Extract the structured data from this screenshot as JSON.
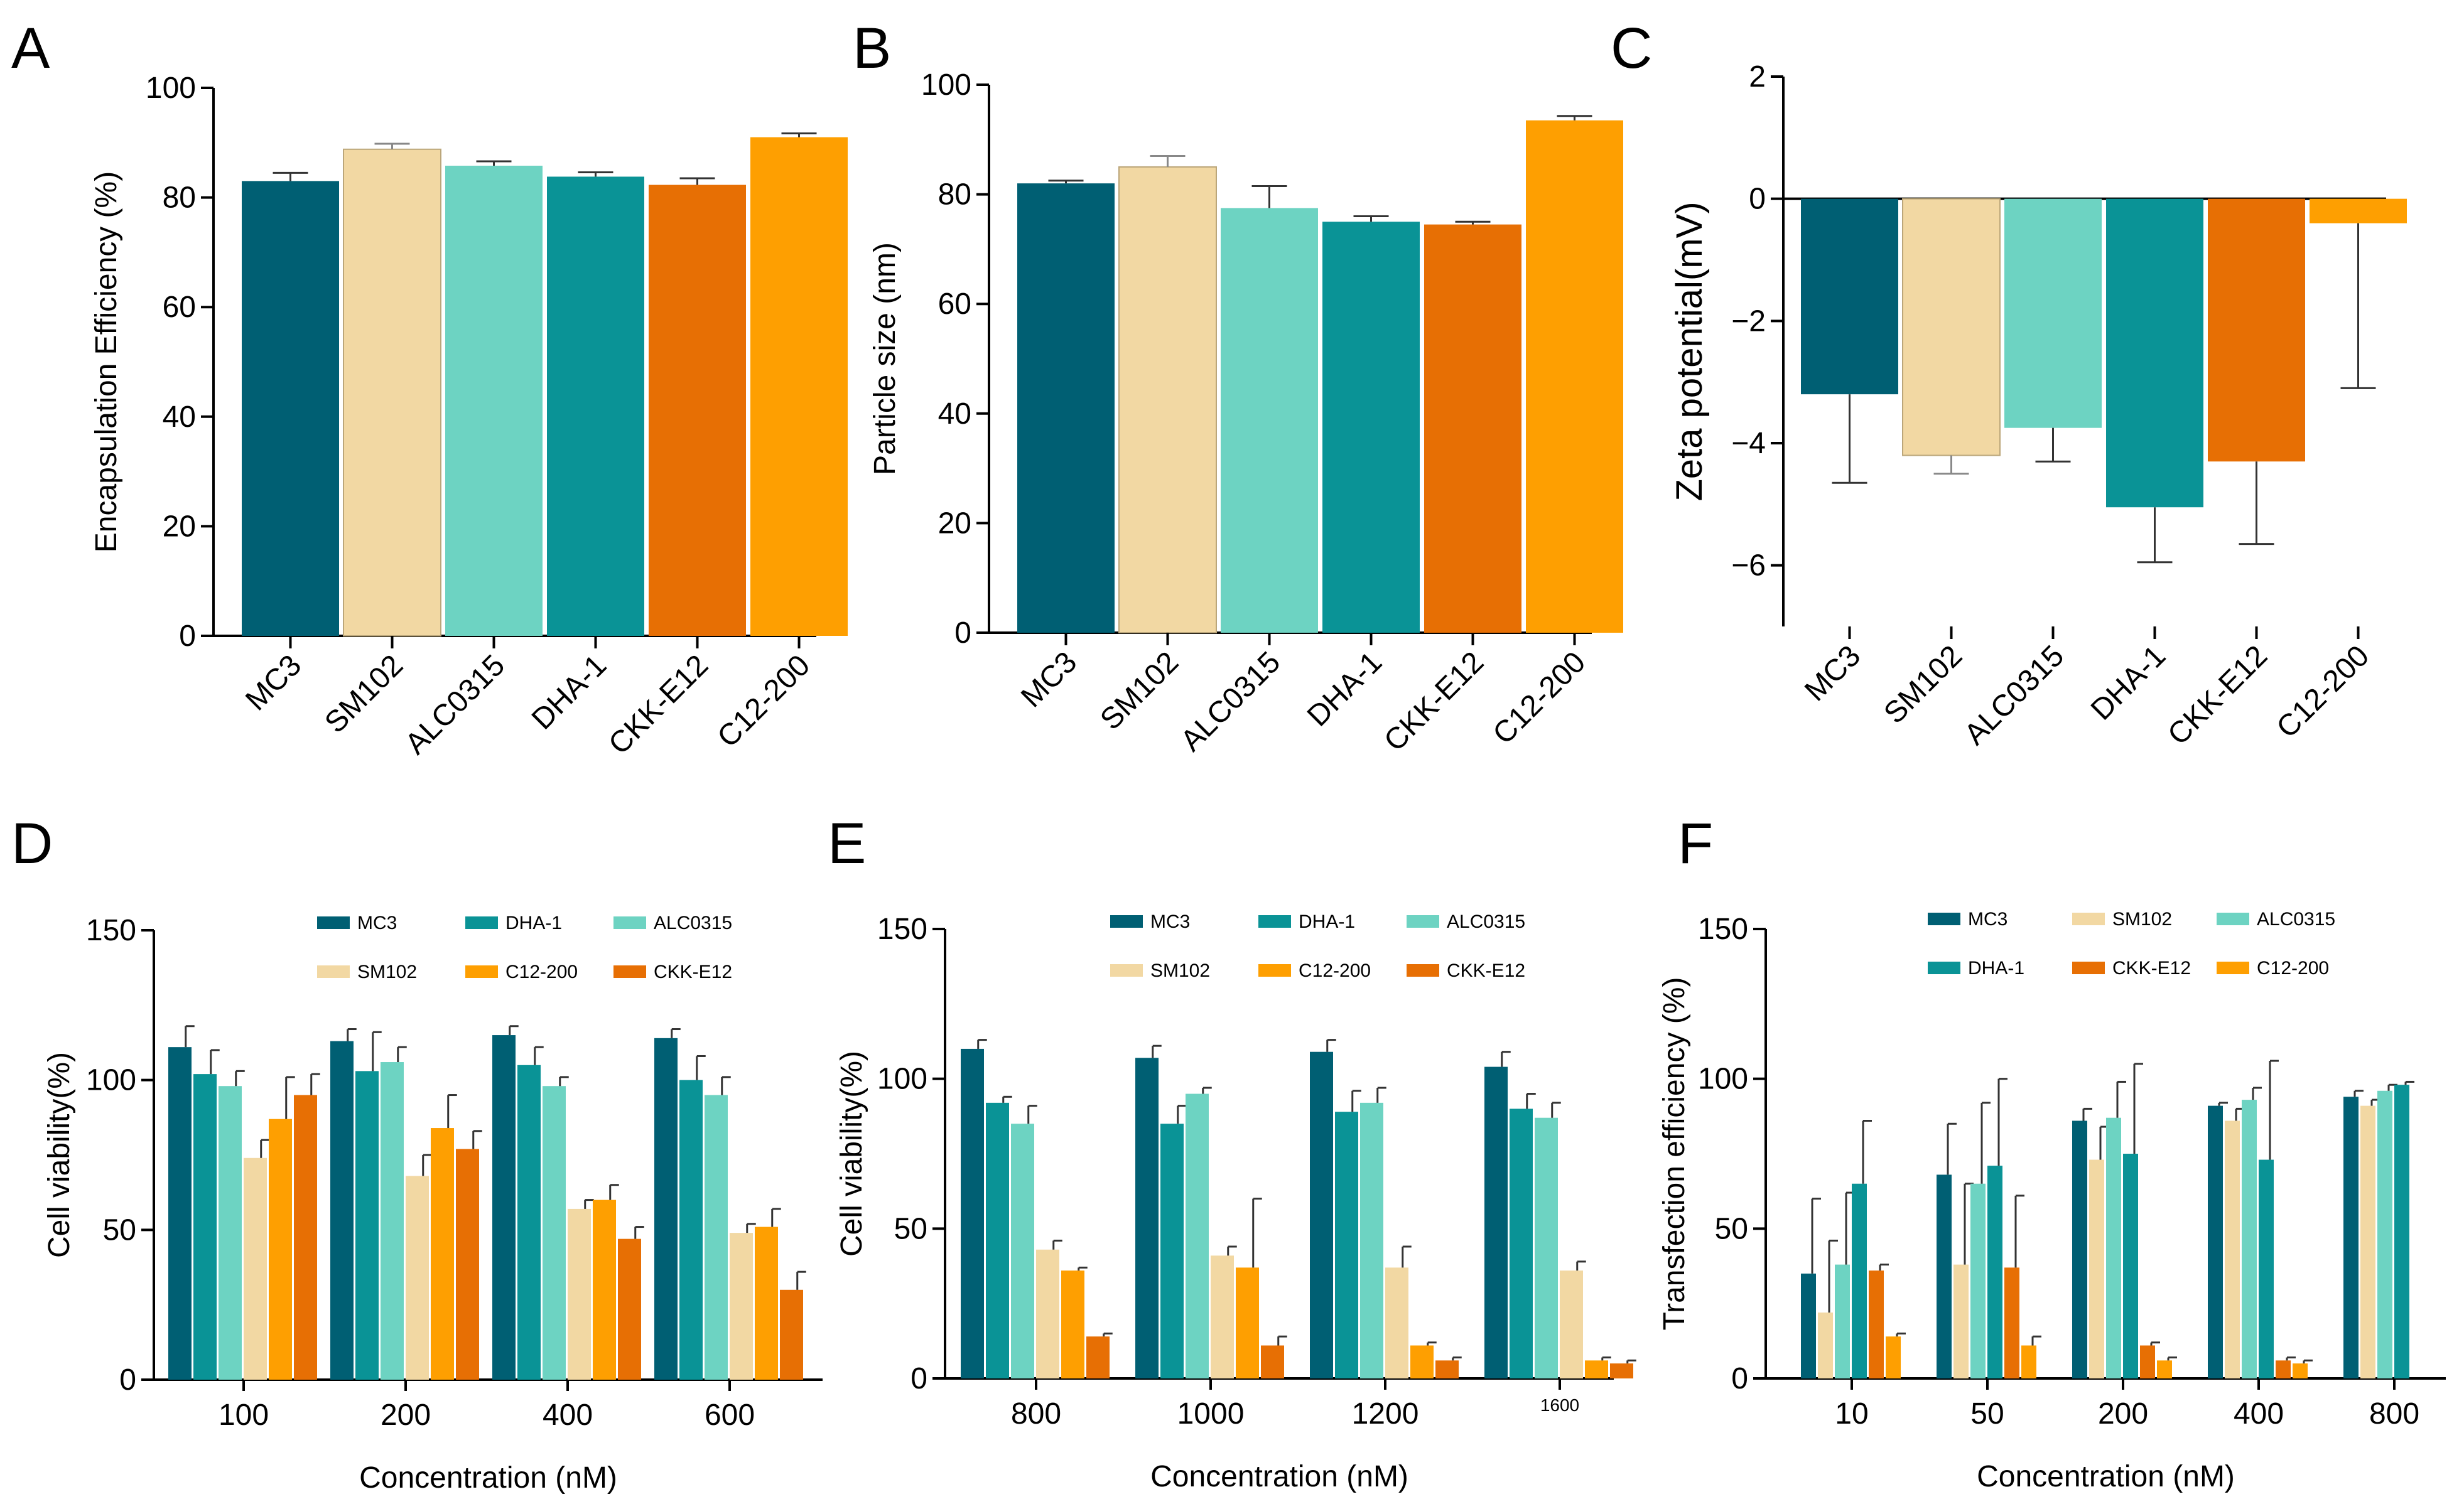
{
  "panel_labels": [
    "A",
    "B",
    "C",
    "D",
    "E",
    "F"
  ],
  "colors": {
    "MC3": "#005F73",
    "SM102": "#F2D8A3",
    "ALC0315": "#6DD3C2",
    "DHA-1": "#0A9396",
    "CKK-E12": "#E76F04",
    "C12-200": "#FE9F01"
  },
  "chart_data": [
    {
      "id": "A",
      "type": "bar",
      "categories": [
        "MC3",
        "SM102",
        "ALC0315",
        "DHA-1",
        "CKK-E12",
        "C12-200"
      ],
      "values": [
        83,
        88.8,
        85.8,
        83.8,
        82.3,
        91
      ],
      "errors": [
        1.5,
        1.0,
        0.8,
        0.8,
        1.2,
        0.7
      ],
      "xlabel": "",
      "ylabel": "Encapsulation Efficiency (%)",
      "ylim": [
        0,
        100
      ],
      "yticks": [
        0,
        20,
        40,
        60,
        80,
        100
      ],
      "ytick_labels": [
        "0",
        "20",
        "40",
        "60",
        "80",
        "100"
      ]
    },
    {
      "id": "B",
      "type": "bar",
      "categories": [
        "MC3",
        "SM102",
        "ALC0315",
        "DHA-1",
        "CKK-E12",
        "C12-200"
      ],
      "values": [
        82,
        85,
        77.5,
        75,
        74.5,
        93.5
      ],
      "errors": [
        0.5,
        2,
        4,
        1,
        0.5,
        0.8
      ],
      "xlabel": "",
      "ylabel": "Particle size (nm)",
      "ylim": [
        0,
        100
      ],
      "yticks": [
        0,
        20,
        40,
        60,
        80,
        100
      ],
      "ytick_labels": [
        "0",
        "20",
        "40",
        "60",
        "80",
        "100"
      ]
    },
    {
      "id": "C",
      "type": "bar",
      "categories": [
        "MC3",
        "SM102",
        "ALC0315",
        "DHA-1",
        "CKK-E12",
        "C12-200"
      ],
      "values": [
        -3.2,
        -4.2,
        -3.75,
        -5.05,
        -4.3,
        -0.4
      ],
      "errors": [
        1.45,
        0.3,
        0.55,
        0.9,
        1.35,
        2.7
      ],
      "xlabel": "",
      "ylabel": "Zeta potential(mV)",
      "ylim": [
        -7,
        2
      ],
      "yticks": [
        -6,
        -4,
        -2,
        0,
        2
      ],
      "ytick_labels": [
        "−6",
        "−4",
        "−2",
        "0",
        "2"
      ]
    },
    {
      "id": "D",
      "type": "bar",
      "categories": [
        "100",
        "200",
        "400",
        "600"
      ],
      "series": [
        {
          "name": "MC3",
          "values": [
            111,
            113,
            115,
            114
          ],
          "errors": [
            7,
            4,
            3,
            3
          ]
        },
        {
          "name": "DHA-1",
          "values": [
            102,
            103,
            105,
            100
          ],
          "errors": [
            8,
            13,
            6,
            8
          ]
        },
        {
          "name": "ALC0315",
          "values": [
            98,
            106,
            98,
            95
          ],
          "errors": [
            5,
            5,
            3,
            6
          ]
        },
        {
          "name": "SM102",
          "values": [
            74,
            68,
            57,
            49
          ],
          "errors": [
            6,
            7,
            3,
            3
          ]
        },
        {
          "name": "C12-200",
          "values": [
            87,
            84,
            60,
            51
          ],
          "errors": [
            14,
            11,
            5,
            6
          ]
        },
        {
          "name": "CKK-E12",
          "values": [
            95,
            77,
            47,
            30
          ],
          "errors": [
            7,
            6,
            4,
            6
          ]
        }
      ],
      "legend_order": [
        0,
        1,
        2,
        3,
        4,
        5
      ],
      "legend_labels": [
        "MC3",
        "DHA-1",
        "ALC0315",
        "SM102",
        "C12-200",
        "CKK-E12"
      ],
      "xlabel": "Concentration (nM)",
      "ylabel": "Cell viability(%)",
      "ylim": [
        0,
        150
      ],
      "yticks": [
        0,
        50,
        100,
        150
      ],
      "ytick_labels": [
        "0",
        "50",
        "100",
        "150"
      ]
    },
    {
      "id": "E",
      "type": "bar",
      "categories": [
        "800",
        "1000",
        "1200",
        "1600"
      ],
      "series": [
        {
          "name": "MC3",
          "values": [
            110,
            107,
            109,
            104
          ],
          "errors": [
            3,
            4,
            4,
            5
          ]
        },
        {
          "name": "DHA-1",
          "values": [
            92,
            85,
            89,
            90
          ],
          "errors": [
            2,
            6,
            7,
            5
          ]
        },
        {
          "name": "ALC0315",
          "values": [
            85,
            95,
            92,
            87
          ],
          "errors": [
            6,
            2,
            5,
            5
          ]
        },
        {
          "name": "SM102",
          "values": [
            43,
            41,
            37,
            36
          ],
          "errors": [
            3,
            3,
            7,
            3
          ]
        },
        {
          "name": "C12-200",
          "values": [
            36,
            37,
            11,
            6
          ],
          "errors": [
            1,
            23,
            1,
            1
          ]
        },
        {
          "name": "CKK-E12",
          "values": [
            14,
            11,
            6,
            5
          ],
          "errors": [
            1,
            3,
            1,
            1
          ]
        }
      ],
      "legend_labels": [
        "MC3",
        "DHA-1",
        "ALC0315",
        "SM102",
        "C12-200",
        "CKK-E12"
      ],
      "xlabel": "Concentration (nM)",
      "ylabel": "Cell viability(%)",
      "ylim": [
        0,
        150
      ],
      "yticks": [
        0,
        50,
        100,
        150
      ],
      "ytick_labels": [
        "0",
        "50",
        "100",
        "150"
      ]
    },
    {
      "id": "F",
      "type": "bar",
      "categories": [
        "10",
        "50",
        "200",
        "400",
        "800"
      ],
      "series": [
        {
          "name": "MC3",
          "values": [
            35,
            68,
            86,
            91,
            94
          ],
          "errors": [
            25,
            17,
            4,
            1,
            2
          ]
        },
        {
          "name": "SM102",
          "values": [
            22,
            38,
            73,
            86,
            91
          ],
          "errors": [
            24,
            27,
            11,
            4,
            2
          ]
        },
        {
          "name": "ALC0315",
          "values": [
            38,
            65,
            87,
            93,
            96
          ],
          "errors": [
            24,
            27,
            12,
            4,
            2
          ]
        },
        {
          "name": "DHA-1",
          "values": [
            65,
            71,
            75,
            73,
            98
          ],
          "errors": [
            21,
            29,
            30,
            33,
            1
          ]
        },
        {
          "name": "CKK-E12",
          "values": [
            36,
            37,
            11,
            6,
            null
          ],
          "errors": [
            2,
            24,
            1,
            1,
            null
          ]
        },
        {
          "name": "C12-200",
          "values": [
            14,
            11,
            6,
            5,
            null
          ],
          "errors": [
            1,
            3,
            1,
            1,
            null
          ]
        }
      ],
      "legend_labels": [
        "MC3",
        "SM102",
        "ALC0315",
        "DHA-1",
        "CKK-E12",
        "C12-200"
      ],
      "xlabel": "Concentration (nM)",
      "ylabel": "Transfection efficiency (%)",
      "ylim": [
        0,
        150
      ],
      "yticks": [
        0,
        50,
        100,
        150
      ],
      "ytick_labels": [
        "0",
        "50",
        "100",
        "150"
      ]
    }
  ]
}
